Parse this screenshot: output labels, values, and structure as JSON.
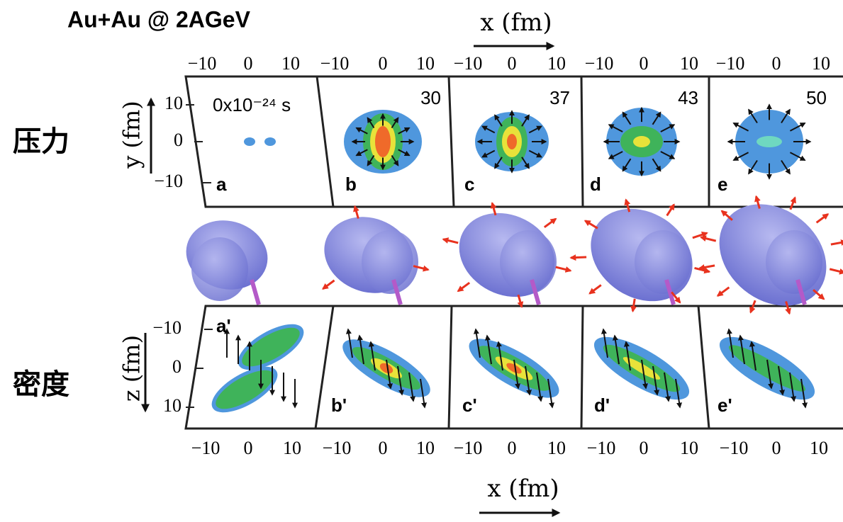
{
  "title": "Au+Au @ 2AGeV",
  "top_axis_label": "x (fm)",
  "bottom_axis_label": "x (fm)",
  "y_axis_label": "y (fm)",
  "z_axis_label": "z (fm)",
  "row_labels": [
    "压力",
    "密度"
  ],
  "x_tick_labels": [
    "−10",
    "0",
    "10"
  ],
  "y_tick_labels": [
    "10",
    "0",
    "−10"
  ],
  "z_tick_labels": [
    "−10",
    "0",
    "10"
  ],
  "top_panels": [
    {
      "label": "a",
      "time": "0x10⁻²⁴ s"
    },
    {
      "label": "b",
      "time": "30"
    },
    {
      "label": "c",
      "time": "37"
    },
    {
      "label": "d",
      "time": "43"
    },
    {
      "label": "e",
      "time": "50"
    }
  ],
  "bottom_panels": [
    {
      "label": "a'"
    },
    {
      "label": "b'"
    },
    {
      "label": "c'"
    },
    {
      "label": "d'"
    },
    {
      "label": "e'"
    }
  ]
}
